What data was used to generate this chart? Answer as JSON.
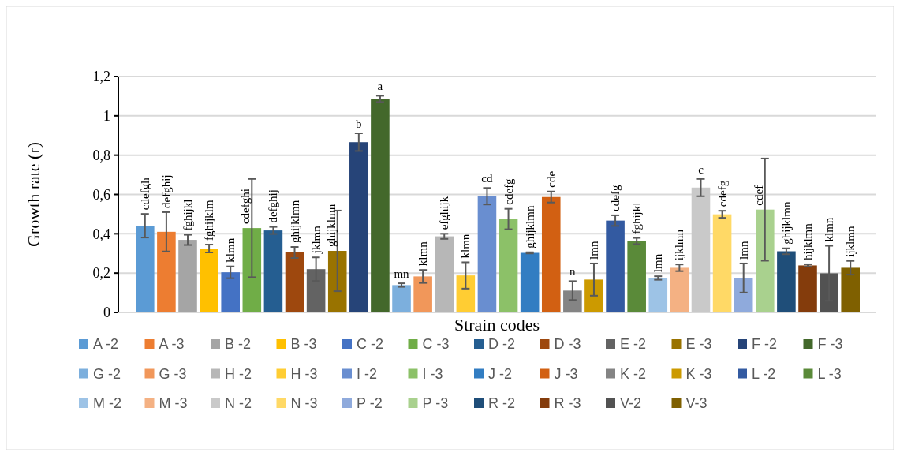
{
  "chart_data": {
    "type": "bar",
    "xlabel": "Strain codes",
    "ylabel": "Growth rate (r)",
    "categories": [
      null
    ],
    "ylim": [
      0,
      1.2
    ],
    "yticks": [
      0,
      {
        "value": 0.2,
        "label": "0,2"
      },
      {
        "value": 0.4,
        "label": "0,4"
      },
      {
        "value": 0.6,
        "label": "0,6"
      },
      {
        "value": 0.8,
        "label": "0,8"
      },
      1,
      {
        "value": 1.2,
        "label": "1,2"
      }
    ],
    "grid": "y",
    "legend": "bottom",
    "series": [
      {
        "name": "A -2",
        "color": "#5b9bd5",
        "values": [
          0.441
        ],
        "errors": [
          0.06
        ],
        "value_labels": [
          "cdefgh"
        ]
      },
      {
        "name": "A -3",
        "color": "#ed7d31",
        "values": [
          0.41
        ],
        "errors": [
          0.1
        ],
        "value_labels": [
          "defghij"
        ]
      },
      {
        "name": "B -2",
        "color": "#a5a5a5",
        "values": [
          0.369
        ],
        "errors": [
          0.026
        ],
        "value_labels": [
          "fghijkl"
        ]
      },
      {
        "name": "B -3",
        "color": "#ffc000",
        "values": [
          0.325
        ],
        "errors": [
          0.02
        ],
        "value_labels": [
          "fghijklm"
        ]
      },
      {
        "name": "C -2",
        "color": "#4472c4",
        "values": [
          0.204
        ],
        "errors": [
          0.03
        ],
        "value_labels": [
          "klmn"
        ]
      },
      {
        "name": "C -3",
        "color": "#70ad47",
        "values": [
          0.429
        ],
        "errors": [
          0.25
        ],
        "value_labels": [
          "cdefghi"
        ]
      },
      {
        "name": "D -2",
        "color": "#255e91",
        "values": [
          0.417
        ],
        "errors": [
          0.018
        ],
        "value_labels": [
          "defghij"
        ]
      },
      {
        "name": "D -3",
        "color": "#9e480e",
        "values": [
          0.305
        ],
        "errors": [
          0.028
        ],
        "value_labels": [
          "ghijklmn"
        ]
      },
      {
        "name": "E -2",
        "color": "#636363",
        "values": [
          0.22
        ],
        "errors": [
          0.06
        ],
        "value_labels": [
          "jklmn"
        ]
      },
      {
        "name": "E -3",
        "color": "#997300",
        "values": [
          0.313
        ],
        "errors": [
          0.205
        ],
        "value_labels": [
          "ghijklmn"
        ]
      },
      {
        "name": "F -2",
        "color": "#264478",
        "values": [
          0.866
        ],
        "errors": [
          0.045
        ],
        "value_labels": [
          "b"
        ]
      },
      {
        "name": "F -3",
        "color": "#43682b",
        "values": [
          1.086
        ],
        "errors": [
          0.016
        ],
        "value_labels": [
          "a"
        ]
      },
      {
        "name": "G -2",
        "color": "#7cafdd",
        "values": [
          0.139
        ],
        "errors": [
          0.009
        ],
        "value_labels": [
          "mn"
        ]
      },
      {
        "name": "G -3",
        "color": "#f1975a",
        "values": [
          0.183
        ],
        "errors": [
          0.033
        ],
        "value_labels": [
          "klmn"
        ]
      },
      {
        "name": "H -2",
        "color": "#b7b7b7",
        "values": [
          0.387
        ],
        "errors": [
          0.013
        ],
        "value_labels": [
          "efghijk"
        ]
      },
      {
        "name": "H -3",
        "color": "#ffcd33",
        "values": [
          0.188
        ],
        "errors": [
          0.067
        ],
        "value_labels": [
          "klmn"
        ]
      },
      {
        "name": "I -2",
        "color": "#698ed0",
        "values": [
          0.591
        ],
        "errors": [
          0.042
        ],
        "value_labels": [
          "cd"
        ]
      },
      {
        "name": "I -3",
        "color": "#8cc168",
        "values": [
          0.475
        ],
        "errors": [
          0.052
        ],
        "value_labels": [
          "cdefg"
        ]
      },
      {
        "name": "J -2",
        "color": "#327dc2",
        "values": [
          0.303
        ],
        "errors": [
          0.003
        ],
        "value_labels": [
          "ghijklmn"
        ]
      },
      {
        "name": "J -3",
        "color": "#d26012",
        "values": [
          0.587
        ],
        "errors": [
          0.028
        ],
        "value_labels": [
          "cde"
        ]
      },
      {
        "name": "K -2",
        "color": "#848484",
        "values": [
          0.111
        ],
        "errors": [
          0.048
        ],
        "value_labels": [
          "n"
        ]
      },
      {
        "name": "K -3",
        "color": "#cc9a00",
        "values": [
          0.167
        ],
        "errors": [
          0.082
        ],
        "value_labels": [
          "lmn"
        ]
      },
      {
        "name": "L -2",
        "color": "#335aa1",
        "values": [
          0.467
        ],
        "errors": [
          0.027
        ],
        "value_labels": [
          "cdefg"
        ]
      },
      {
        "name": "L -3",
        "color": "#5a8a39",
        "values": [
          0.363
        ],
        "errors": [
          0.016
        ],
        "value_labels": [
          "fghijkl"
        ]
      },
      {
        "name": "M -2",
        "color": "#9dc3e6",
        "values": [
          0.175
        ],
        "errors": [
          0.009
        ],
        "value_labels": [
          "lmn"
        ]
      },
      {
        "name": "M -3",
        "color": "#f4b183",
        "values": [
          0.227
        ],
        "errors": [
          0.017
        ],
        "value_labels": [
          "ijklmn"
        ]
      },
      {
        "name": "N -2",
        "color": "#c9c9c9",
        "values": [
          0.635
        ],
        "errors": [
          0.044
        ],
        "value_labels": [
          "c"
        ]
      },
      {
        "name": "N -3",
        "color": "#ffd966",
        "values": [
          0.499
        ],
        "errors": [
          0.018
        ],
        "value_labels": [
          "cdefg"
        ]
      },
      {
        "name": "P -2",
        "color": "#8faadc",
        "values": [
          0.175
        ],
        "errors": [
          0.074
        ],
        "value_labels": [
          "lmn"
        ]
      },
      {
        "name": "P -3",
        "color": "#a9d18e",
        "values": [
          0.523
        ],
        "errors": [
          0.26
        ],
        "value_labels": [
          "cdef"
        ]
      },
      {
        "name": "R -2",
        "color": "#1f4e79",
        "values": [
          0.311
        ],
        "errors": [
          0.015
        ],
        "value_labels": [
          "ghijklmn"
        ]
      },
      {
        "name": "R -3",
        "color": "#843c0c",
        "values": [
          0.239
        ],
        "errors": [
          0.006
        ],
        "value_labels": [
          "hijklmn"
        ]
      },
      {
        "name": "V-2",
        "color": "#525252",
        "values": [
          0.199
        ],
        "errors": [
          0.14
        ],
        "value_labels": [
          "klmn"
        ]
      },
      {
        "name": "V-3",
        "color": "#7f6000",
        "values": [
          0.227
        ],
        "errors": [
          0.035
        ],
        "value_labels": [
          "ijklmn"
        ]
      }
    ]
  }
}
